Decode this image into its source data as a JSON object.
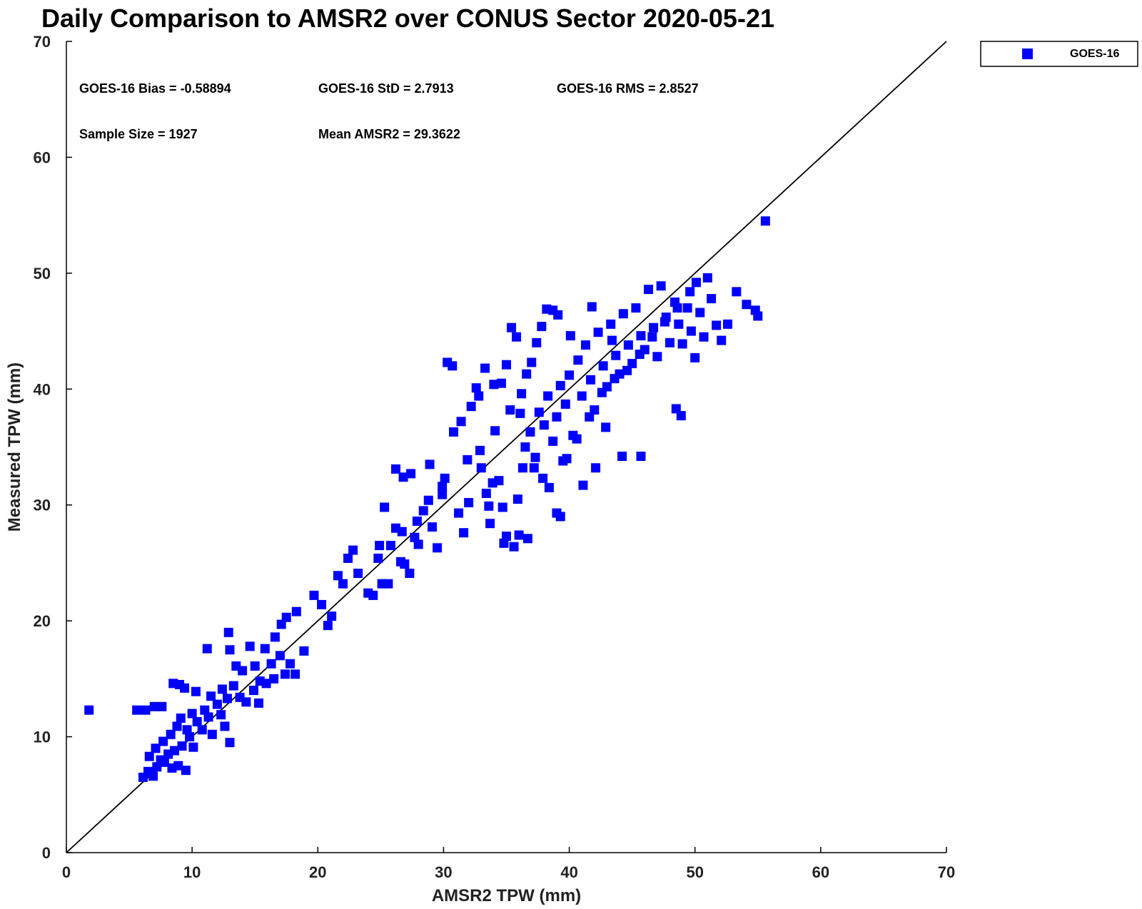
{
  "chart_data": {
    "type": "scatter",
    "title": "Daily Comparison to AMSR2 over CONUS Sector 2020-05-21",
    "xlabel": "AMSR2 TPW (mm)",
    "ylabel": "Measured TPW (mm)",
    "xlim": [
      0,
      70
    ],
    "ylim": [
      0,
      70
    ],
    "xticks": [
      "0",
      "10",
      "20",
      "30",
      "40",
      "50",
      "60",
      "70"
    ],
    "yticks": [
      "0",
      "10",
      "20",
      "30",
      "40",
      "50",
      "60",
      "70"
    ],
    "grid": false,
    "legend": {
      "position": "outside-top-right",
      "entries": [
        "GOES-16"
      ]
    },
    "reference_line": {
      "label": "1:1",
      "from": [
        0,
        0
      ],
      "to": [
        70,
        70
      ]
    },
    "stats": {
      "bias": "GOES-16 Bias = -0.58894",
      "std": "GOES-16 StD = 2.7913",
      "rms": "GOES-16 RMS = 2.8527",
      "sample_size": "Sample Size = 1927",
      "mean": "Mean AMSR2 = 29.3622"
    },
    "series": [
      {
        "name": "GOES-16",
        "color": "#0000ff",
        "marker": "square",
        "points": [
          [
            1.8,
            12.3
          ],
          [
            5.6,
            12.3
          ],
          [
            6.3,
            12.3
          ],
          [
            7.0,
            12.6
          ],
          [
            7.6,
            12.6
          ],
          [
            6.1,
            6.5
          ],
          [
            6.5,
            7.0
          ],
          [
            6.9,
            6.6
          ],
          [
            7.2,
            7.4
          ],
          [
            7.5,
            8.0
          ],
          [
            7.8,
            7.8
          ],
          [
            8.1,
            8.5
          ],
          [
            8.4,
            7.3
          ],
          [
            8.6,
            8.8
          ],
          [
            8.9,
            7.5
          ],
          [
            9.2,
            9.2
          ],
          [
            9.5,
            7.1
          ],
          [
            9.8,
            10.0
          ],
          [
            10.1,
            9.1
          ],
          [
            6.6,
            8.3
          ],
          [
            7.1,
            9.0
          ],
          [
            7.7,
            9.6
          ],
          [
            8.3,
            10.2
          ],
          [
            8.8,
            10.9
          ],
          [
            9.1,
            11.6
          ],
          [
            9.6,
            10.6
          ],
          [
            10.0,
            12.0
          ],
          [
            10.4,
            11.3
          ],
          [
            10.8,
            10.6
          ],
          [
            11.0,
            12.3
          ],
          [
            11.3,
            11.7
          ],
          [
            11.6,
            10.2
          ],
          [
            12.0,
            12.8
          ],
          [
            12.3,
            11.9
          ],
          [
            12.6,
            10.9
          ],
          [
            13.0,
            9.5
          ],
          [
            12.8,
            13.3
          ],
          [
            8.5,
            14.6
          ],
          [
            9.0,
            14.5
          ],
          [
            9.4,
            14.2
          ],
          [
            10.3,
            13.9
          ],
          [
            11.5,
            13.5
          ],
          [
            12.4,
            14.1
          ],
          [
            11.2,
            17.6
          ],
          [
            12.9,
            19.0
          ],
          [
            13.0,
            17.5
          ],
          [
            13.5,
            16.1
          ],
          [
            14.0,
            15.7
          ],
          [
            14.6,
            17.8
          ],
          [
            15.0,
            16.1
          ],
          [
            15.4,
            14.8
          ],
          [
            15.8,
            17.6
          ],
          [
            16.3,
            16.3
          ],
          [
            16.6,
            18.6
          ],
          [
            17.0,
            17.0
          ],
          [
            17.4,
            15.4
          ],
          [
            17.8,
            16.3
          ],
          [
            18.2,
            15.4
          ],
          [
            13.3,
            14.4
          ],
          [
            13.8,
            13.4
          ],
          [
            14.3,
            13.0
          ],
          [
            14.9,
            14.0
          ],
          [
            15.3,
            12.9
          ],
          [
            15.9,
            14.6
          ],
          [
            16.5,
            15.0
          ],
          [
            17.1,
            19.7
          ],
          [
            17.5,
            20.3
          ],
          [
            18.3,
            20.8
          ],
          [
            18.9,
            17.4
          ],
          [
            19.7,
            22.2
          ],
          [
            20.3,
            21.4
          ],
          [
            20.8,
            19.6
          ],
          [
            21.1,
            20.4
          ],
          [
            21.6,
            23.9
          ],
          [
            22.0,
            23.2
          ],
          [
            22.4,
            25.4
          ],
          [
            22.8,
            26.1
          ],
          [
            23.2,
            24.1
          ],
          [
            24.0,
            22.4
          ],
          [
            24.4,
            22.2
          ],
          [
            24.8,
            25.4
          ],
          [
            25.1,
            23.2
          ],
          [
            25.6,
            23.2
          ],
          [
            25.3,
            29.8
          ],
          [
            25.8,
            26.5
          ],
          [
            26.2,
            28.0
          ],
          [
            26.6,
            25.1
          ],
          [
            26.9,
            24.9
          ],
          [
            27.3,
            24.1
          ],
          [
            27.7,
            27.2
          ],
          [
            28.0,
            26.6
          ],
          [
            28.4,
            29.5
          ],
          [
            28.8,
            30.4
          ],
          [
            29.1,
            28.1
          ],
          [
            29.5,
            26.3
          ],
          [
            29.9,
            31.6
          ],
          [
            26.2,
            33.1
          ],
          [
            26.8,
            32.4
          ],
          [
            27.4,
            32.7
          ],
          [
            28.9,
            33.5
          ],
          [
            30.1,
            32.3
          ],
          [
            30.3,
            42.3
          ],
          [
            30.7,
            42.0
          ],
          [
            31.2,
            29.3
          ],
          [
            31.6,
            27.6
          ],
          [
            32.0,
            30.2
          ],
          [
            32.2,
            38.5
          ],
          [
            32.6,
            40.1
          ],
          [
            32.9,
            34.7
          ],
          [
            33.3,
            41.8
          ],
          [
            33.0,
            33.2
          ],
          [
            33.4,
            31.0
          ],
          [
            33.7,
            28.4
          ],
          [
            34.1,
            36.4
          ],
          [
            34.4,
            32.1
          ],
          [
            34.7,
            29.8
          ],
          [
            35.0,
            27.3
          ],
          [
            35.3,
            38.2
          ],
          [
            35.6,
            26.4
          ],
          [
            36.0,
            27.4
          ],
          [
            36.3,
            33.2
          ],
          [
            34.6,
            40.5
          ],
          [
            35.0,
            42.1
          ],
          [
            35.4,
            45.3
          ],
          [
            35.8,
            44.5
          ],
          [
            36.2,
            39.6
          ],
          [
            36.6,
            41.3
          ],
          [
            37.0,
            42.3
          ],
          [
            37.4,
            44.0
          ],
          [
            37.8,
            45.4
          ],
          [
            38.2,
            46.9
          ],
          [
            38.7,
            46.8
          ],
          [
            39.1,
            46.4
          ],
          [
            36.5,
            35.0
          ],
          [
            36.9,
            36.3
          ],
          [
            37.3,
            34.1
          ],
          [
            37.6,
            38.0
          ],
          [
            38.0,
            36.9
          ],
          [
            38.3,
            39.4
          ],
          [
            38.7,
            35.5
          ],
          [
            39.0,
            37.6
          ],
          [
            39.3,
            40.3
          ],
          [
            39.7,
            38.7
          ],
          [
            40.0,
            41.2
          ],
          [
            40.3,
            36.0
          ],
          [
            40.7,
            42.5
          ],
          [
            41.0,
            39.4
          ],
          [
            41.3,
            43.8
          ],
          [
            41.7,
            40.8
          ],
          [
            42.0,
            38.2
          ],
          [
            42.3,
            44.9
          ],
          [
            42.7,
            42.0
          ],
          [
            43.0,
            40.2
          ],
          [
            43.3,
            45.6
          ],
          [
            43.7,
            42.9
          ],
          [
            44.0,
            41.3
          ],
          [
            44.3,
            46.5
          ],
          [
            44.7,
            43.8
          ],
          [
            45.0,
            42.2
          ],
          [
            45.3,
            47.0
          ],
          [
            45.7,
            44.6
          ],
          [
            46.0,
            43.4
          ],
          [
            46.3,
            48.6
          ],
          [
            46.7,
            45.3
          ],
          [
            47.0,
            42.8
          ],
          [
            47.3,
            48.9
          ],
          [
            47.7,
            46.2
          ],
          [
            48.0,
            44.0
          ],
          [
            48.4,
            47.5
          ],
          [
            48.7,
            45.6
          ],
          [
            49.0,
            43.9
          ],
          [
            49.4,
            47.0
          ],
          [
            49.7,
            45.0
          ],
          [
            50.1,
            49.2
          ],
          [
            50.4,
            46.6
          ],
          [
            50.7,
            44.5
          ],
          [
            51.0,
            49.6
          ],
          [
            51.3,
            47.8
          ],
          [
            51.7,
            45.5
          ],
          [
            52.1,
            44.2
          ],
          [
            52.6,
            45.6
          ],
          [
            53.3,
            48.4
          ],
          [
            54.1,
            47.3
          ],
          [
            54.8,
            46.8
          ],
          [
            55.0,
            46.3
          ],
          [
            55.6,
            54.5
          ],
          [
            48.5,
            38.3
          ],
          [
            48.9,
            37.7
          ],
          [
            50.0,
            42.7
          ],
          [
            44.2,
            34.2
          ],
          [
            45.7,
            34.2
          ],
          [
            42.1,
            33.2
          ],
          [
            41.1,
            31.7
          ],
          [
            39.0,
            29.3
          ],
          [
            39.3,
            29.0
          ],
          [
            36.7,
            27.1
          ],
          [
            33.6,
            29.9
          ],
          [
            34.8,
            26.7
          ],
          [
            30.8,
            36.3
          ],
          [
            31.4,
            37.2
          ],
          [
            32.8,
            39.4
          ],
          [
            34.0,
            40.4
          ],
          [
            36.1,
            37.9
          ],
          [
            37.2,
            33.2
          ],
          [
            38.4,
            31.5
          ],
          [
            39.5,
            33.8
          ],
          [
            40.6,
            35.7
          ],
          [
            41.6,
            37.6
          ],
          [
            42.6,
            39.7
          ],
          [
            43.6,
            40.9
          ],
          [
            44.6,
            41.6
          ],
          [
            45.6,
            43.0
          ],
          [
            46.6,
            44.5
          ],
          [
            47.6,
            45.8
          ],
          [
            48.6,
            47.0
          ],
          [
            49.6,
            48.4
          ],
          [
            40.1,
            44.6
          ],
          [
            41.8,
            47.1
          ],
          [
            43.4,
            44.2
          ],
          [
            42.9,
            36.7
          ],
          [
            39.8,
            34.0
          ],
          [
            37.9,
            32.3
          ],
          [
            35.9,
            30.5
          ],
          [
            33.9,
            31.9
          ],
          [
            31.9,
            33.9
          ],
          [
            29.9,
            30.9
          ],
          [
            27.9,
            28.6
          ],
          [
            26.7,
            27.7
          ],
          [
            24.9,
            26.5
          ]
        ]
      }
    ]
  }
}
